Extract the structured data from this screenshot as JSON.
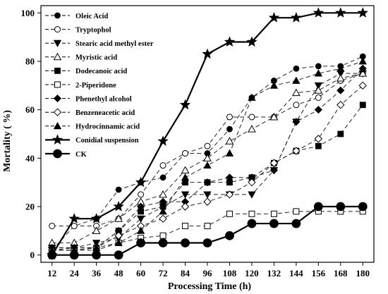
{
  "chart_data": {
    "type": "line",
    "xlabel": "Processing Time (h)",
    "ylabel": "Mortality ( %)",
    "x": [
      12,
      24,
      36,
      48,
      60,
      72,
      84,
      96,
      108,
      120,
      132,
      144,
      156,
      168,
      180
    ],
    "ylim": [
      0,
      100
    ],
    "yticks": [
      0,
      20,
      40,
      60,
      80,
      100
    ],
    "grid": false,
    "legend_position": "top-left",
    "series": [
      {
        "name": "Oleic Acid",
        "marker": "circle-filled",
        "dash": "dashed",
        "width": 1,
        "values": [
          2,
          12,
          15,
          27,
          30,
          32,
          42,
          42,
          52,
          65,
          72,
          77,
          78,
          78,
          82
        ]
      },
      {
        "name": "Tryptophol",
        "marker": "circle-open",
        "dash": "dashed",
        "width": 1,
        "values": [
          12,
          12,
          12,
          15,
          25,
          37,
          42,
          45,
          57,
          57,
          57,
          62,
          65,
          72,
          75
        ]
      },
      {
        "name": "Stearic acid methyl ester",
        "marker": "triangle-down-filled",
        "dash": "dashed",
        "width": 1,
        "values": [
          2,
          3,
          5,
          7,
          15,
          20,
          25,
          25,
          25,
          25,
          35,
          55,
          70,
          75,
          75
        ]
      },
      {
        "name": "Myristic acid",
        "marker": "triangle-up-open",
        "dash": "dashed",
        "width": 1,
        "values": [
          5,
          5,
          10,
          15,
          22,
          25,
          35,
          40,
          47,
          52,
          57,
          67,
          68,
          73,
          75
        ]
      },
      {
        "name": "Dodecanoic acid",
        "marker": "square-filled",
        "dash": "dashed",
        "width": 1,
        "values": [
          3,
          3,
          3,
          10,
          18,
          20,
          30,
          30,
          30,
          32,
          38,
          43,
          45,
          50,
          62
        ]
      },
      {
        "name": "2-Piperidone",
        "marker": "square-open",
        "dash": "dashed",
        "width": 1,
        "values": [
          2,
          2,
          2,
          5,
          7,
          8,
          12,
          12,
          17,
          17,
          17,
          18,
          18,
          18,
          18
        ]
      },
      {
        "name": "Phenethyl alcohol",
        "marker": "diamond-filled",
        "dash": "dashed",
        "width": 1,
        "values": [
          3,
          3,
          3,
          10,
          20,
          22,
          22,
          30,
          32,
          32,
          35,
          55,
          60,
          68,
          77
        ]
      },
      {
        "name": "Benzeneacetic acid",
        "marker": "diamond-open",
        "dash": "dashed",
        "width": 1,
        "values": [
          2,
          2,
          3,
          8,
          12,
          15,
          20,
          22,
          25,
          30,
          38,
          43,
          48,
          62,
          70
        ]
      },
      {
        "name": "Hydrocinnamic acid",
        "marker": "triangle-up-filled",
        "dash": "dashed",
        "width": 1,
        "values": [
          2,
          2,
          3,
          5,
          10,
          18,
          32,
          37,
          42,
          65,
          70,
          72,
          75,
          77,
          80
        ]
      },
      {
        "name": "Conidial suspension",
        "marker": "star-filled",
        "dash": "solid",
        "width": 2.2,
        "values": [
          0,
          15,
          15,
          20,
          30,
          47,
          62,
          83,
          88,
          88,
          98,
          98,
          100,
          100,
          100
        ]
      },
      {
        "name": "CK",
        "marker": "circle-filled-large",
        "dash": "solid",
        "width": 2.2,
        "values": [
          0,
          0,
          0,
          0,
          5,
          5,
          5,
          5,
          8,
          13,
          13,
          13,
          20,
          20,
          20
        ]
      }
    ]
  }
}
